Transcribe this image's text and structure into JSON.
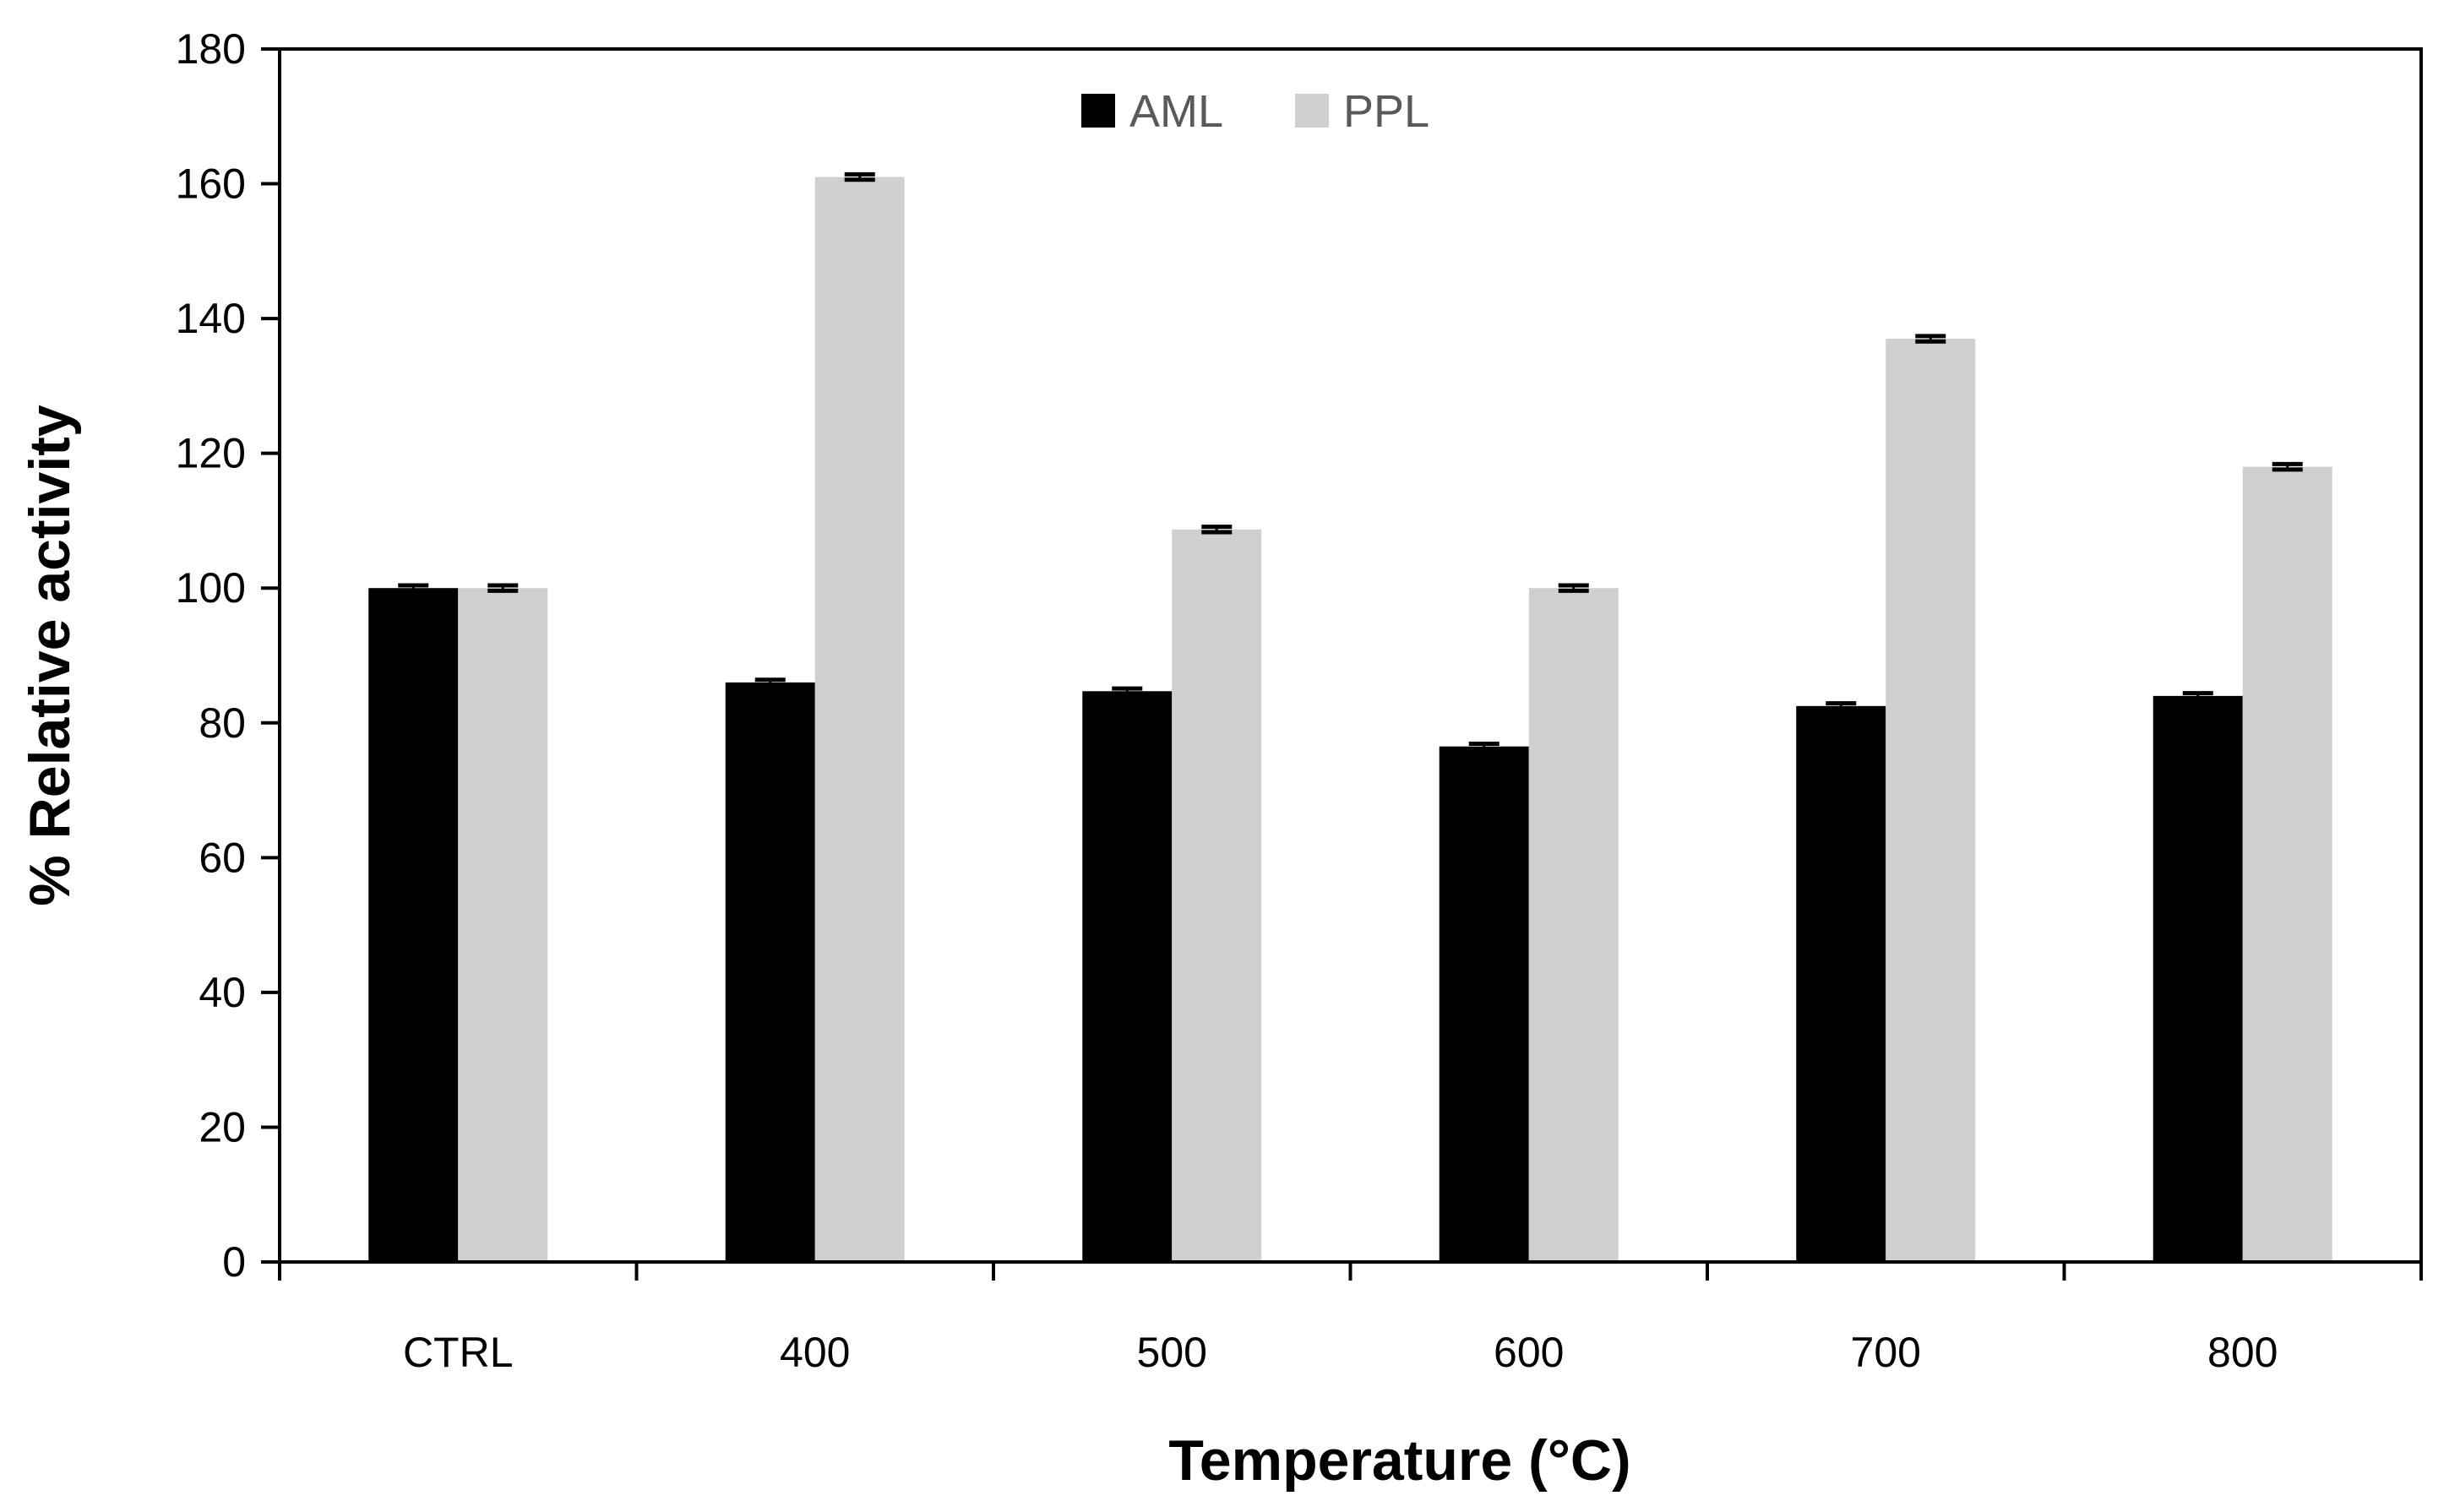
{
  "chart_data": {
    "type": "bar",
    "title": "",
    "xlabel": "Temperature (°C)",
    "ylabel": "% Relative activity",
    "categories": [
      "CTRL",
      "400",
      "500",
      "600",
      "700",
      "800"
    ],
    "ylim": [
      0,
      180
    ],
    "yticks": [
      0,
      20,
      40,
      60,
      80,
      100,
      120,
      140,
      160,
      180
    ],
    "ytick_labels": [
      "0",
      "20",
      "40",
      "60",
      "80",
      "100",
      "120",
      "140",
      "160",
      "180"
    ],
    "grid": false,
    "legend_position": "top-center",
    "series": [
      {
        "name": "AML",
        "color": "#000000",
        "values": [
          100,
          86,
          84.7,
          76.5,
          82.5,
          84
        ],
        "errors": [
          0.4,
          0.4,
          0.4,
          0.4,
          0.4,
          0.4
        ]
      },
      {
        "name": "PPL",
        "color": "#d0cfcf",
        "values": [
          100,
          161,
          108.7,
          100,
          137,
          118
        ],
        "errors": [
          0.4,
          0.4,
          0.4,
          0.4,
          0.4,
          0.4
        ]
      }
    ]
  }
}
